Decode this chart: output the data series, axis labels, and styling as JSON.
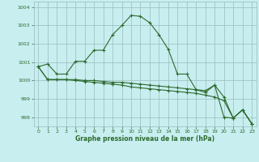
{
  "title": "Graphe pression niveau de la mer (hPa)",
  "background_color": "#c8eef0",
  "grid_color": "#9abcbe",
  "line_color": "#2d6a2d",
  "marker_color": "#2d6a2d",
  "xlim": [
    -0.5,
    23.5
  ],
  "ylim": [
    997.5,
    1004.3
  ],
  "yticks": [
    998,
    999,
    1000,
    1001,
    1002,
    1003,
    1004
  ],
  "xticks": [
    0,
    1,
    2,
    3,
    4,
    5,
    6,
    7,
    8,
    9,
    10,
    11,
    12,
    13,
    14,
    15,
    16,
    17,
    18,
    19,
    20,
    21,
    22,
    23
  ],
  "series1_x": [
    0,
    1,
    2,
    3,
    4,
    5,
    6,
    7,
    8,
    9,
    10,
    11,
    12,
    13,
    14,
    15,
    16,
    17,
    18,
    19,
    20,
    21,
    22,
    23
  ],
  "series1_y": [
    1000.75,
    1000.9,
    1000.35,
    1000.35,
    1001.05,
    1001.05,
    1001.65,
    1001.65,
    1002.5,
    1003.0,
    1003.55,
    1003.5,
    1003.15,
    1002.5,
    1001.7,
    1000.35,
    1000.35,
    999.5,
    999.35,
    999.75,
    999.1,
    997.95,
    998.4,
    997.65
  ],
  "series2_x": [
    0,
    1,
    2,
    3,
    4,
    5,
    6,
    7,
    8,
    9,
    10,
    11,
    12,
    13,
    14,
    15,
    16,
    17,
    18,
    19,
    20,
    21,
    22,
    23
  ],
  "series2_y": [
    1000.75,
    1000.05,
    1000.05,
    1000.05,
    1000.05,
    1000.0,
    1000.0,
    999.95,
    999.9,
    999.9,
    999.85,
    999.8,
    999.75,
    999.7,
    999.65,
    999.6,
    999.55,
    999.5,
    999.45,
    999.75,
    998.0,
    997.95,
    998.4,
    997.65
  ],
  "series3_x": [
    0,
    1,
    2,
    3,
    4,
    5,
    6,
    7,
    8,
    9,
    10,
    11,
    12,
    13,
    14,
    15,
    16,
    17,
    18,
    19,
    20,
    21,
    22,
    23
  ],
  "series3_y": [
    1000.75,
    1000.05,
    1000.05,
    1000.05,
    1000.0,
    999.95,
    999.9,
    999.85,
    999.8,
    999.75,
    999.65,
    999.6,
    999.55,
    999.5,
    999.45,
    999.4,
    999.35,
    999.3,
    999.2,
    999.1,
    998.9,
    997.95,
    998.4,
    997.65
  ]
}
